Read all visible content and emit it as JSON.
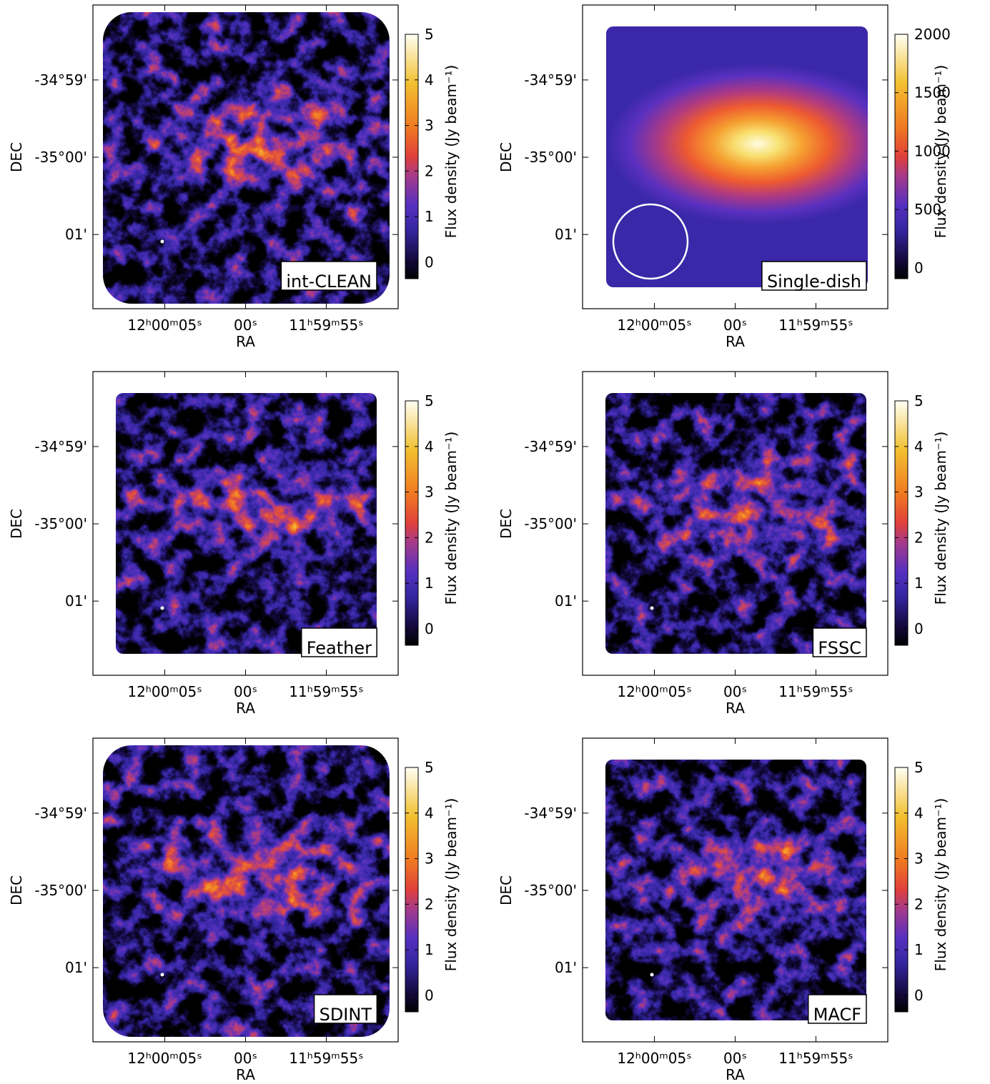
{
  "chart_data": [
    {
      "type": "image",
      "label": "int-CLEAN",
      "xlabel": "RA",
      "ylabel": "DEC",
      "xlim": [
        9.45,
        -9.45
      ],
      "xticks": [
        {
          "value": 5,
          "label": "12ʰ00ᵐ05ˢ"
        },
        {
          "value": 0,
          "label": "00ˢ"
        },
        {
          "value": -5,
          "label": "11ʰ59ᵐ55ˢ"
        }
      ],
      "ylim": [
        -1.96,
        1.97
      ],
      "yticks": [
        {
          "value": 1,
          "label": "-34°59'"
        },
        {
          "value": 0,
          "label": "-35°00'"
        },
        {
          "value": -1,
          "label": "01'"
        }
      ],
      "colorbar": {
        "label": "Flux density (Jy beam⁻¹)",
        "lim": [
          -0.36,
          5
        ],
        "ticks": [
          0,
          1,
          2,
          3,
          4,
          5
        ]
      }
    },
    {
      "type": "image",
      "label": "Single-dish",
      "xlabel": "RA",
      "ylabel": "DEC",
      "xlim": [
        9.45,
        -9.45
      ],
      "xticks": [
        {
          "value": 5,
          "label": "12ʰ00ᵐ05ˢ"
        },
        {
          "value": 0,
          "label": "00ˢ"
        },
        {
          "value": -5,
          "label": "11ʰ59ᵐ55ˢ"
        }
      ],
      "ylim": [
        -1.96,
        1.97
      ],
      "yticks": [
        {
          "value": 1,
          "label": "-34°59'"
        },
        {
          "value": 0,
          "label": "-35°00'"
        },
        {
          "value": -1,
          "label": "01'"
        }
      ],
      "colorbar": {
        "label": "Flux density (Jy beam⁻¹)",
        "lim": [
          -92,
          2000
        ],
        "ticks": [
          0,
          500,
          1000,
          1500,
          2000
        ]
      }
    },
    {
      "type": "image",
      "label": "Feather",
      "xlabel": "RA",
      "ylabel": "DEC",
      "xlim": [
        9.45,
        -9.45
      ],
      "xticks": [
        {
          "value": 5,
          "label": "12ʰ00ᵐ05ˢ"
        },
        {
          "value": 0,
          "label": "00ˢ"
        },
        {
          "value": -5,
          "label": "11ʰ59ᵐ55ˢ"
        }
      ],
      "ylim": [
        -1.96,
        1.97
      ],
      "yticks": [
        {
          "value": 1,
          "label": "-34°59'"
        },
        {
          "value": 0,
          "label": "-35°00'"
        },
        {
          "value": -1,
          "label": "01'"
        }
      ],
      "colorbar": {
        "label": "Flux density (Jy beam⁻¹)",
        "lim": [
          -0.36,
          5
        ],
        "ticks": [
          0,
          1,
          2,
          3,
          4,
          5
        ]
      }
    },
    {
      "type": "image",
      "label": "FSSC",
      "xlabel": "RA",
      "ylabel": "DEC",
      "xlim": [
        9.45,
        -9.45
      ],
      "xticks": [
        {
          "value": 5,
          "label": "12ʰ00ᵐ05ˢ"
        },
        {
          "value": 0,
          "label": "00ˢ"
        },
        {
          "value": -5,
          "label": "11ʰ59ᵐ55ˢ"
        }
      ],
      "ylim": [
        -1.96,
        1.97
      ],
      "yticks": [
        {
          "value": 1,
          "label": "-34°59'"
        },
        {
          "value": 0,
          "label": "-35°00'"
        },
        {
          "value": -1,
          "label": "01'"
        }
      ],
      "colorbar": {
        "label": "Flux density (Jy beam⁻¹)",
        "lim": [
          -0.36,
          5
        ],
        "ticks": [
          0,
          1,
          2,
          3,
          4,
          5
        ]
      }
    },
    {
      "type": "image",
      "label": "SDINT",
      "xlabel": "RA",
      "ylabel": "DEC",
      "xlim": [
        9.45,
        -9.45
      ],
      "xticks": [
        {
          "value": 5,
          "label": "12ʰ00ᵐ05ˢ"
        },
        {
          "value": 0,
          "label": "00ˢ"
        },
        {
          "value": -5,
          "label": "11ʰ59ᵐ55ˢ"
        }
      ],
      "ylim": [
        -1.96,
        1.97
      ],
      "yticks": [
        {
          "value": 1,
          "label": "-34°59'"
        },
        {
          "value": 0,
          "label": "-35°00'"
        },
        {
          "value": -1,
          "label": "01'"
        }
      ],
      "colorbar": {
        "label": "Flux density (Jy beam⁻¹)",
        "lim": [
          -0.36,
          5
        ],
        "ticks": [
          0,
          1,
          2,
          3,
          4,
          5
        ]
      }
    },
    {
      "type": "image",
      "label": "MACF",
      "xlabel": "RA",
      "ylabel": "DEC",
      "xlim": [
        9.45,
        -9.45
      ],
      "xticks": [
        {
          "value": 5,
          "label": "12ʰ00ᵐ05ˢ"
        },
        {
          "value": 0,
          "label": "00ˢ"
        },
        {
          "value": -5,
          "label": "11ʰ59ᵐ55ˢ"
        }
      ],
      "ylim": [
        -1.96,
        1.97
      ],
      "yticks": [
        {
          "value": 1,
          "label": "-34°59'"
        },
        {
          "value": 0,
          "label": "-35°00'"
        },
        {
          "value": -1,
          "label": "01'"
        }
      ],
      "colorbar": {
        "label": "Flux density (Jy beam⁻¹)",
        "lim": [
          -0.36,
          5
        ],
        "ticks": [
          0,
          1,
          2,
          3,
          4,
          5
        ]
      }
    }
  ]
}
